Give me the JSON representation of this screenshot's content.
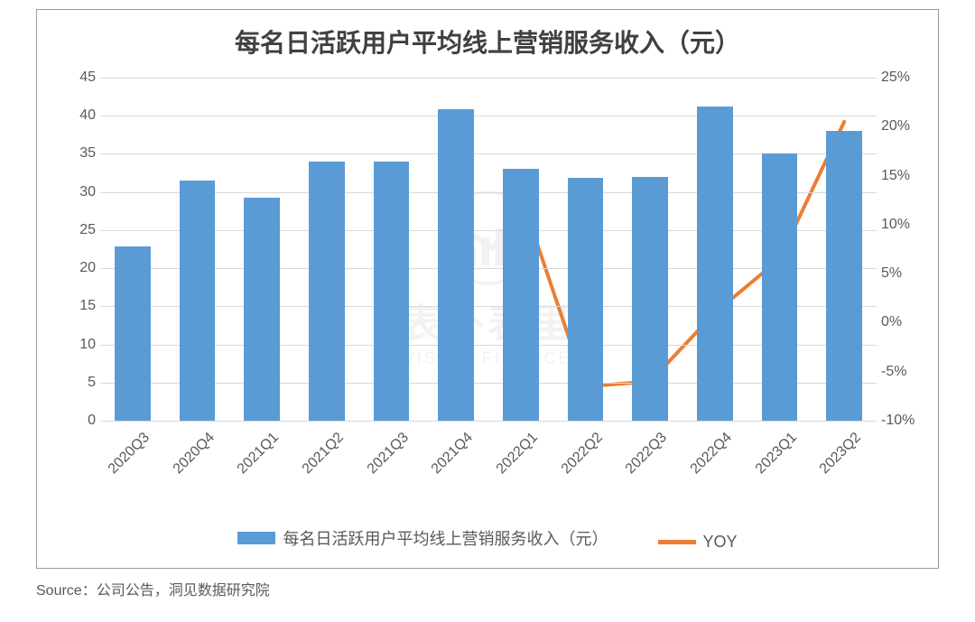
{
  "chart": {
    "type": "bar+line",
    "title": "每名日活跃用户平均线上营销服务收入（元）",
    "title_fontsize": 28,
    "title_color": "#404040",
    "background_color": "#ffffff",
    "border_color": "#999999",
    "grid_color": "#d9d9d9",
    "label_color": "#595959",
    "label_fontsize": 16,
    "categories": [
      "2020Q3",
      "2020Q4",
      "2021Q1",
      "2021Q2",
      "2021Q3",
      "2021Q4",
      "2022Q1",
      "2022Q2",
      "2022Q3",
      "2022Q4",
      "2023Q1",
      "2023Q2"
    ],
    "bars": {
      "label": "每名日活跃用户平均线上营销服务收入（元）",
      "values": [
        22.8,
        31.5,
        29.3,
        34.0,
        34.0,
        40.8,
        33.0,
        31.8,
        32.0,
        41.2,
        35.0,
        38.0
      ],
      "color": "#5b9bd5",
      "bar_width_fraction": 0.55
    },
    "line": {
      "label": "YOY",
      "start_index": 6,
      "values": [
        13.0,
        -6.5,
        -6.0,
        1.0,
        6.5,
        20.5
      ],
      "color": "#ed7d31",
      "line_width": 4
    },
    "y_left": {
      "min": 0,
      "max": 45,
      "step": 5,
      "ticks": [
        0,
        5,
        10,
        15,
        20,
        25,
        30,
        35,
        40,
        45
      ]
    },
    "y_right": {
      "min": -10,
      "max": 25,
      "step": 5,
      "ticks": [
        -10,
        -5,
        0,
        5,
        10,
        15,
        20,
        25
      ],
      "suffix": "%"
    },
    "x_label_rotation_deg": -45,
    "legend": {
      "position": "bottom",
      "fontsize": 18
    }
  },
  "watermark": {
    "cn": "表外表里",
    "en": "VISION FINANCE"
  },
  "source": "Source：公司公告，洞见数据研究院"
}
